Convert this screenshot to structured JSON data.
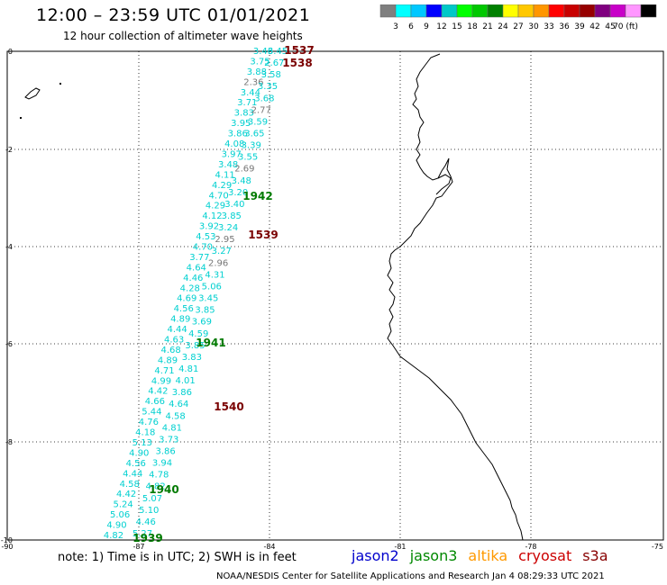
{
  "header": {
    "title": "12:00 – 23:59 UTC 01/01/2021",
    "subtitle": "12 hour collection of altimeter wave heights"
  },
  "colorbar": {
    "colors": [
      "#7f7f7f",
      "#00ffff",
      "#00c8ff",
      "#0000ff",
      "#00c8c8",
      "#00ff00",
      "#00c800",
      "#008000",
      "#ffff00",
      "#ffc800",
      "#ff9600",
      "#ff0000",
      "#c80000",
      "#960000",
      "#800080",
      "#c800c8",
      "#ff96ff",
      "#000000"
    ],
    "labels": [
      "3",
      "6",
      "9",
      "12",
      "15",
      "18",
      "21",
      "24",
      "27",
      "30",
      "33",
      "36",
      "39",
      "42",
      "45",
      "70 (ft)"
    ]
  },
  "axes": {
    "lon_labels": [
      "-90",
      "-87",
      "-84",
      "-81",
      "-78",
      "-75"
    ],
    "lat_labels": [
      "0",
      "-2",
      "-4",
      "-6",
      "-8",
      "-10"
    ]
  },
  "tracks": [
    {
      "id": "track-a",
      "color": "#00d0d0",
      "values": [
        "3.46",
        "3.75",
        "3.88",
        "2.36",
        "3.44",
        "3.71",
        "3.83",
        "3.95",
        "3.86",
        "4.08",
        "3.97",
        "3.48",
        "4.11",
        "4.29",
        "4.70",
        "4.29",
        "4.12",
        "3.92",
        "4.53",
        "4.70",
        "3.77",
        "4.64",
        "4.46",
        "4.28",
        "4.69",
        "4.56",
        "4.89",
        "4.44",
        "4.63",
        "4.68",
        "4.89",
        "4.71",
        "4.99",
        "4.42",
        "4.66",
        "5.44",
        "4.76",
        "4.18",
        "5.13",
        "4.90",
        "4.56",
        "4.44",
        "4.58",
        "4.42",
        "5.24",
        "5.06",
        "4.90",
        "4.82"
      ]
    },
    {
      "id": "track-b",
      "color": "#00d0d0",
      "values": [
        "3.45",
        "2.67",
        "3.58",
        "3.35",
        "3.68",
        "2.77",
        "3.59",
        "3.65",
        "3.39",
        "3.55",
        "2.69",
        "3.48",
        "3.20",
        "3.40",
        "3.85",
        "3.24",
        "2.95",
        "3.27",
        "2.96",
        "4.31",
        "5.06",
        "3.45",
        "3.85",
        "3.69",
        "4.59",
        "3.85",
        "3.83",
        "4.81",
        "4.01",
        "3.86",
        "4.64",
        "4.58",
        "4.81",
        "3.73",
        "3.86",
        "3.94",
        "4.78",
        "4.82",
        "5.07",
        "5.10",
        "4.46",
        "5.27"
      ]
    }
  ],
  "time_labels": [
    {
      "text": "1537",
      "color": "#7a0000"
    },
    {
      "text": "1538",
      "color": "#7a0000"
    },
    {
      "text": "1942",
      "color": "#007a00"
    },
    {
      "text": "1539",
      "color": "#7a0000"
    },
    {
      "text": "1941",
      "color": "#007a00"
    },
    {
      "text": "1540",
      "color": "#7a0000"
    },
    {
      "text": "1940",
      "color": "#007a00"
    },
    {
      "text": "1939",
      "color": "#007a00"
    }
  ],
  "note": "note:  1) Time is in UTC;  2) SWH is in feet",
  "legend": [
    {
      "label": "jason2",
      "color": "#0000cc"
    },
    {
      "label": "jason3",
      "color": "#008800"
    },
    {
      "label": "altika",
      "color": "#ff9900"
    },
    {
      "label": "cryosat",
      "color": "#cc0000"
    },
    {
      "label": "s3a",
      "color": "#880000"
    }
  ],
  "credit": "NOAA/NESDIS Center for Satellite Applications and Research     Jan  4 08:29:33 UTC 2021"
}
